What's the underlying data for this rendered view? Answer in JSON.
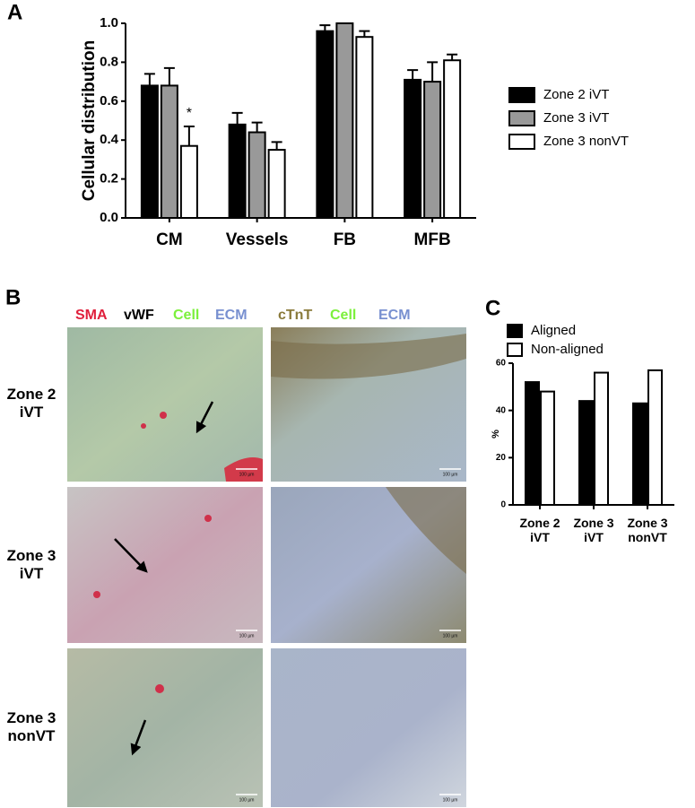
{
  "chart_data": [
    {
      "type": "bar",
      "panel": "A",
      "ylabel": "Cellular distribution",
      "categories": [
        "CM",
        "Vessels",
        "FB",
        "MFB"
      ],
      "series": [
        {
          "name": "Zone 2 iVT",
          "color": "#000000",
          "values": [
            0.68,
            0.48,
            0.96,
            0.71
          ],
          "errors": [
            0.06,
            0.06,
            0.03,
            0.05
          ]
        },
        {
          "name": "Zone 3 iVT",
          "color": "#999999",
          "values": [
            0.68,
            0.44,
            1.0,
            0.7
          ],
          "errors": [
            0.09,
            0.05,
            0,
            0.1
          ]
        },
        {
          "name": "Zone 3 nonVT",
          "color": "#ffffff",
          "values": [
            0.37,
            0.35,
            0.93,
            0.81
          ],
          "errors": [
            0.1,
            0.04,
            0.03,
            0.03
          ]
        }
      ],
      "annotations": [
        "*"
      ],
      "ylim": [
        0,
        1
      ],
      "yticks": [
        {
          "value": 0,
          "label": "0.0"
        },
        0.2,
        0.4,
        0.6,
        0.8,
        {
          "value": 1,
          "label": "1.0"
        }
      ]
    },
    {
      "type": "bar",
      "panel": "C",
      "ylabel": "%",
      "categories": [
        "Zone 2 iVT",
        "Zone 3 iVT",
        "Zone 3 nonVT"
      ],
      "series": [
        {
          "name": "Aligned",
          "color": "#000000",
          "values": [
            52,
            44,
            43
          ]
        },
        {
          "name": "Non-aligned",
          "color": "#ffffff",
          "values": [
            48,
            56,
            57
          ]
        }
      ],
      "ylim": [
        0,
        60
      ],
      "yticks": [
        0,
        20,
        40,
        60
      ]
    }
  ],
  "panel_b": {
    "panel": "B",
    "left_header": [
      {
        "text": "SMA",
        "color": "#e0203c"
      },
      {
        "text": "vWF",
        "color": "#000000"
      },
      {
        "text": "Cell",
        "color": "#7cf03c"
      },
      {
        "text": "ECM",
        "color": "#7890d0"
      }
    ],
    "right_header": [
      {
        "text": "cTnT",
        "color": "#8a7a3a"
      },
      {
        "text": "Cell",
        "color": "#7cf03c"
      },
      {
        "text": "ECM",
        "color": "#7890d0"
      }
    ],
    "rows": [
      "Zone 2 iVT",
      "Zone 3 iVT",
      "Zone 3 nonVT"
    ],
    "scale_bar": "100 µm"
  }
}
